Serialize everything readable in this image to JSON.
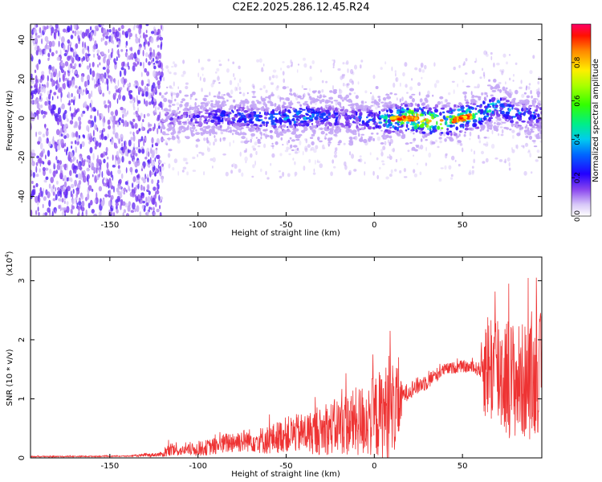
{
  "title": "C2E2.2025.286.12.45.R24",
  "chart_data": [
    {
      "type": "heatmap",
      "xlabel": "Height of straight line (km)",
      "ylabel": "Frequency (Hz)",
      "xlim": [
        -195,
        95
      ],
      "ylim": [
        -50,
        48
      ],
      "xticks": [
        -150,
        -100,
        -50,
        0,
        50
      ],
      "yticks": [
        -40,
        -20,
        0,
        20,
        40
      ],
      "colorbar": {
        "label": "Normalized spectral amplitude",
        "range": [
          0,
          1
        ],
        "ticks": [
          0.0,
          0.2,
          0.4,
          0.6,
          0.8
        ],
        "tick_labels": [
          "0.0",
          "0.2",
          "0.4",
          "0.6",
          "0.8"
        ]
      },
      "features": {
        "broadband_noise_region_km": [
          -195,
          -120
        ],
        "band_center_hz": 0,
        "band_halfwidth_hz": 6,
        "peak_segments_km": [
          [
            10,
            25
          ],
          [
            45,
            55
          ]
        ],
        "peak_amplitude": 0.95
      },
      "band_profile": {
        "x": [
          -120,
          -100,
          -80,
          -60,
          -40,
          -20,
          0,
          20,
          40,
          60,
          70,
          80,
          95
        ],
        "center": [
          0,
          0,
          1,
          -1,
          1,
          0,
          -1,
          0,
          -2,
          2,
          7,
          2,
          1
        ],
        "amplitude": [
          0.15,
          0.2,
          0.28,
          0.35,
          0.4,
          0.25,
          0.3,
          0.9,
          0.8,
          0.55,
          0.4,
          0.35,
          0.3
        ]
      }
    },
    {
      "type": "line",
      "xlabel": "Height of straight line (km)",
      "ylabel": "SNR (10 * v/v)",
      "y_multiplier": "(x10",
      "y_multiplier_exp": "4",
      "y_multiplier_close": ")",
      "xlim": [
        -195,
        95
      ],
      "ylim": [
        0,
        3.4
      ],
      "xticks": [
        -150,
        -100,
        -50,
        0,
        50
      ],
      "yticks": [
        0,
        1,
        2,
        3
      ],
      "color": "#ee3333",
      "envelope": {
        "x": [
          -195,
          -140,
          -120,
          -118,
          -110,
          -100,
          -90,
          -80,
          -70,
          -60,
          -50,
          -40,
          -30,
          -20,
          -10,
          0,
          5,
          10,
          15,
          16,
          20,
          30,
          40,
          50,
          60,
          62,
          70,
          80,
          90,
          95
        ],
        "mid": [
          0.02,
          0.03,
          0.06,
          0.12,
          0.12,
          0.15,
          0.2,
          0.28,
          0.3,
          0.3,
          0.4,
          0.42,
          0.45,
          0.55,
          0.6,
          0.7,
          0.75,
          0.8,
          0.9,
          1.05,
          1.15,
          1.3,
          1.5,
          1.55,
          1.5,
          1.6,
          1.5,
          1.3,
          1.3,
          1.5
        ],
        "amp": [
          0.01,
          0.01,
          0.04,
          0.12,
          0.08,
          0.12,
          0.15,
          0.2,
          0.2,
          0.25,
          0.3,
          0.35,
          0.4,
          0.5,
          0.6,
          0.7,
          0.8,
          0.9,
          0.5,
          0.15,
          0.15,
          0.15,
          0.1,
          0.1,
          0.12,
          0.9,
          1.1,
          1.0,
          1.0,
          1.0
        ]
      }
    }
  ]
}
